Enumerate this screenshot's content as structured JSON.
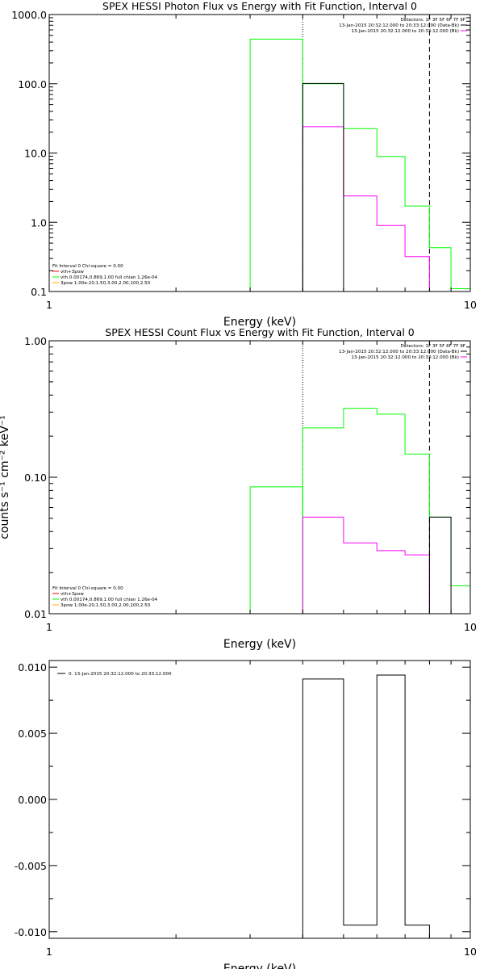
{
  "colors": {
    "axis": "#000000",
    "data": "#000000",
    "fit_component_a": "#ff00ff",
    "fit_component_b": "#00ff00",
    "fit_component_c": "#ffa500",
    "fit_total": "#ff0000"
  },
  "chart_data": [
    {
      "type": "line",
      "title": "SPEX HESSI Photon Flux vs Energy with Fit Function, Interval 0",
      "xlabel": "Energy (keV)",
      "ylabel": "",
      "xscale": "log",
      "yscale": "log",
      "xlim": [
        1,
        10
      ],
      "ylim": [
        0.1,
        1000
      ],
      "xticks": [
        {
          "value": 1,
          "label": "1"
        },
        {
          "value": 10,
          "label": "10"
        }
      ],
      "yticks": [
        {
          "value": 0.1,
          "label": "0.1"
        },
        {
          "value": 1,
          "label": "1.0"
        },
        {
          "value": 10,
          "label": "10.0"
        },
        {
          "value": 100,
          "label": "100.0"
        },
        {
          "value": 1000,
          "label": "1000.0"
        }
      ],
      "vlines": [
        {
          "x": 4.0,
          "style": "dotted"
        },
        {
          "x": 8.0,
          "style": "dashed"
        }
      ],
      "legend_top": {
        "position": "top-right",
        "lines": [
          "Detectors: 1F 3F 5F 6F 7F 9F",
          "13-Jan-2015 20:32:12.000 to 20:33:12.000 (Data-Bk)",
          "13-Jan-2015 20:32:12.000 to 20:33:12.000 (Bk)"
        ]
      },
      "legend_bottom": {
        "position": "bottom-left",
        "lines": [
          "Fit Interval 0   Chi-square = 0.00",
          "vth+3pow",
          "vth 0.00174,0.869,1.00  full chian 1.26e-04",
          "3pow 1.00e-20,1.50,3.00,2.00,100,2.50"
        ]
      },
      "series": [
        {
          "edges": [
            3,
            4
          ],
          "values": [
            441
          ]
        },
        {
          "edges": [
            4,
            5,
            6,
            7,
            8,
            9,
            10
          ],
          "values": [
            100,
            22.5,
            8.9,
            1.72,
            0.43,
            0.11
          ]
        },
        {
          "edges": [
            4,
            5,
            6,
            7,
            8
          ],
          "values": [
            24,
            2.4,
            0.9,
            0.32
          ]
        },
        {
          "edges": [
            4,
            5
          ],
          "values": [
            101
          ]
        }
      ]
    },
    {
      "type": "line",
      "title": "SPEX HESSI Count Flux vs Energy with Fit Function, Interval 0",
      "xlabel": "Energy (keV)",
      "ylabel": "counts s⁻¹ cm⁻² keV⁻¹",
      "xscale": "log",
      "yscale": "log",
      "xlim": [
        1,
        10
      ],
      "ylim": [
        0.01,
        1
      ],
      "xticks": [
        {
          "value": 1,
          "label": "1"
        },
        {
          "value": 10,
          "label": "10"
        }
      ],
      "yticks": [
        {
          "value": 0.01,
          "label": "0.01"
        },
        {
          "value": 0.1,
          "label": "0.10"
        },
        {
          "value": 1,
          "label": "1.00"
        }
      ],
      "vlines": [
        {
          "x": 4.0,
          "style": "dotted"
        },
        {
          "x": 8.0,
          "style": "dashed"
        }
      ],
      "legend_top": {
        "position": "top-right",
        "lines": [
          "Detectors: 1F 3F 5F 6F 7F 9F",
          "13-Jan-2015 20:32:12.000 to 20:33:12.000 (Data-Bk)",
          "13-Jan-2015 20:32:12.000 to 20:33:12.000 (Bk)"
        ]
      },
      "legend_bottom": {
        "position": "bottom-left",
        "lines": [
          "Fit Interval 0   Chi-square = 0.00",
          "vth+3pow",
          "vth 0.00174,0.869,1.00  full chian 1.26e-04",
          "3pow 1.00e-20,1.50,3.00,2.00,100,2.50"
        ]
      },
      "series": [
        {
          "edges": [
            3,
            4
          ],
          "values": [
            0.085
          ]
        },
        {
          "edges": [
            4,
            5,
            6,
            7,
            8,
            9,
            10
          ],
          "values": [
            0.23,
            0.32,
            0.29,
            0.148,
            0.051,
            0.016
          ]
        },
        {
          "edges": [
            4,
            5,
            6,
            7,
            8
          ],
          "values": [
            0.051,
            0.033,
            0.029,
            0.027
          ]
        },
        {
          "edges": [
            8,
            9
          ],
          "values": [
            0.051
          ]
        }
      ]
    },
    {
      "type": "line",
      "title": "",
      "xlabel": "Energy (keV)",
      "ylabel": "",
      "xscale": "log",
      "yscale": "linear",
      "xlim": [
        1,
        10
      ],
      "ylim": [
        -0.0105,
        0.0105
      ],
      "xticks": [
        {
          "value": 1,
          "label": "1"
        },
        {
          "value": 10,
          "label": "10"
        }
      ],
      "yticks": [
        {
          "value": -0.01,
          "label": "-0.010"
        },
        {
          "value": -0.005,
          "label": "-0.005"
        },
        {
          "value": 0,
          "label": "0.000"
        },
        {
          "value": 0.005,
          "label": "0.005"
        },
        {
          "value": 0.01,
          "label": "0.010"
        }
      ],
      "vlines": [],
      "legend_top": {
        "position": "top-left",
        "lines": [
          "0. 13-Jan-2015 20:32:12.000 to 20:33:12.000"
        ]
      },
      "legend_bottom": null,
      "series": [
        {
          "edges": [
            4,
            5,
            6,
            7,
            8
          ],
          "values": [
            0.0091,
            -0.0095,
            0.0094,
            -0.0095
          ]
        }
      ]
    }
  ]
}
